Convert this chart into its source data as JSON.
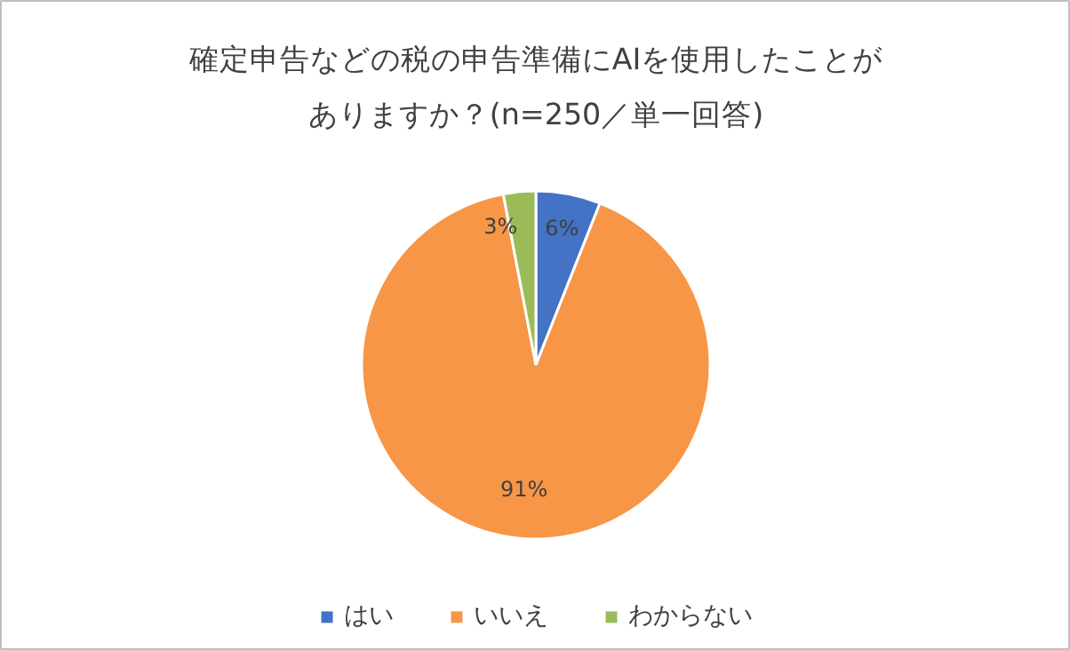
{
  "chart_data": {
    "type": "pie",
    "title": "確定申告などの税の申告準備にAIを使用したことがありますか？(n=250／単一回答)",
    "value_labels": [
      "6%",
      "91%",
      "3%"
    ],
    "categories": [
      "はい",
      "いいえ",
      "わからない"
    ],
    "values": [
      6,
      91,
      3
    ],
    "colors": [
      "#4472c4",
      "#f79646",
      "#9bbb59"
    ],
    "legend": "bottom"
  }
}
